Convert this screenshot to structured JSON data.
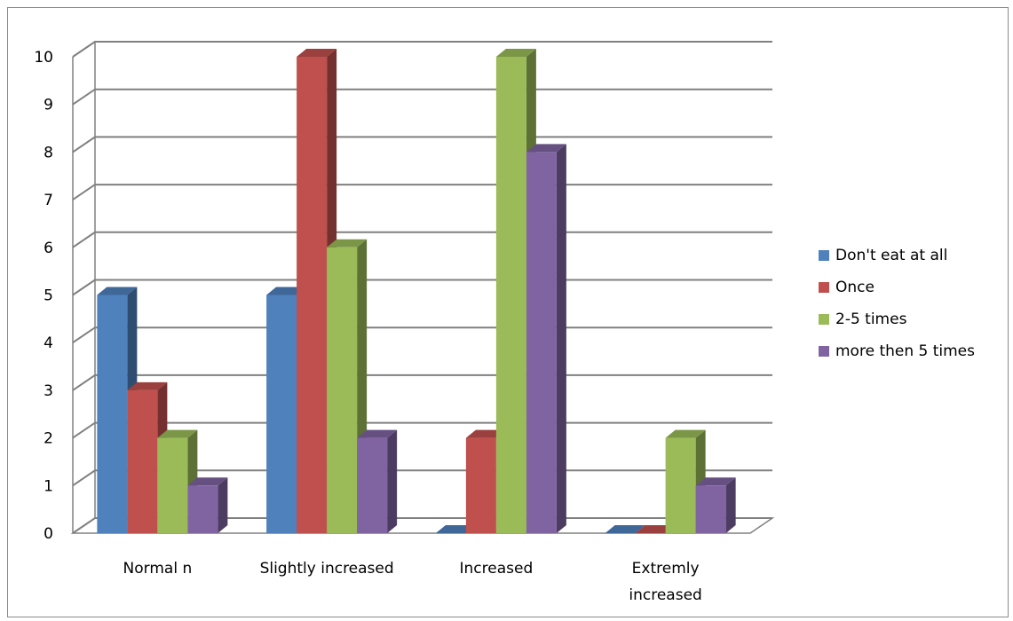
{
  "chart_data": {
    "type": "bar",
    "categories": [
      "Normal n",
      "Slightly increased",
      "Increased",
      "Extremly increased"
    ],
    "category_lines": [
      [
        "Normal n"
      ],
      [
        "Slightly increased"
      ],
      [
        "Increased"
      ],
      [
        "Extremly",
        "increased"
      ]
    ],
    "series": [
      {
        "name": "Don't eat at all",
        "values": [
          5,
          5,
          0,
          0
        ],
        "color": "#4F81BD"
      },
      {
        "name": "Once",
        "values": [
          3,
          10,
          2,
          0
        ],
        "color": "#C0504D"
      },
      {
        "name": "2-5 times",
        "values": [
          2,
          6,
          10,
          2
        ],
        "color": "#9BBB59"
      },
      {
        "name": "more then 5 times",
        "values": [
          1,
          2,
          8,
          1
        ],
        "color": "#8064A2"
      }
    ],
    "yticks": [
      "0",
      "1",
      "2",
      "3",
      "4",
      "5",
      "6",
      "7",
      "8",
      "9",
      "10"
    ],
    "ylim": [
      0,
      10
    ],
    "grid": true,
    "legend_position": "right",
    "style": "3d-clustered-column"
  }
}
